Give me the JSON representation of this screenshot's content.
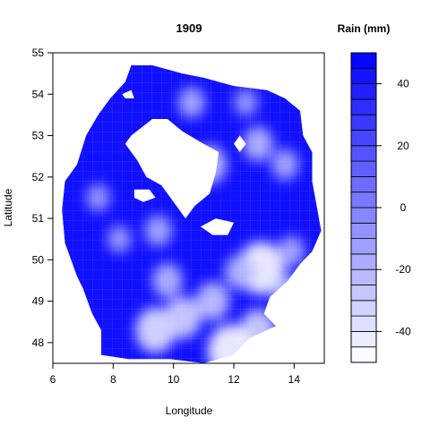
{
  "chart_data": {
    "type": "heatmap",
    "title": "1909",
    "xlabel": "Longitude",
    "ylabel": "Latitude",
    "xlim": [
      6,
      15
    ],
    "ylim": [
      47.5,
      55
    ],
    "x_ticks": [
      "6",
      "8",
      "10",
      "12",
      "14"
    ],
    "y_ticks": [
      "48",
      "49",
      "50",
      "51",
      "52",
      "53",
      "54",
      "55"
    ],
    "legend_title": "Rain (mm)",
    "legend_placement": "right",
    "legend_range": [
      -50,
      50
    ],
    "legend_ticks": [
      "-40",
      "-20",
      "0",
      "20",
      "40"
    ],
    "levels": [
      -50,
      -45,
      -40,
      -35,
      -30,
      -25,
      -20,
      -15,
      -10,
      -5,
      0,
      5,
      10,
      15,
      20,
      25,
      30,
      35,
      40,
      45,
      50
    ],
    "colors": {
      "high": "#0000ff",
      "low": "#ffffff"
    },
    "outline": [
      [
        8.6,
        54.7
      ],
      [
        9.3,
        54.7
      ],
      [
        10.3,
        54.5
      ],
      [
        11.0,
        54.4
      ],
      [
        12.0,
        54.2
      ],
      [
        13.1,
        54.1
      ],
      [
        13.7,
        53.9
      ],
      [
        14.2,
        53.6
      ],
      [
        14.3,
        53.0
      ],
      [
        14.6,
        52.6
      ],
      [
        14.6,
        51.9
      ],
      [
        14.8,
        51.1
      ],
      [
        14.9,
        50.7
      ],
      [
        14.6,
        50.2
      ],
      [
        14.2,
        49.9
      ],
      [
        13.8,
        49.5
      ],
      [
        13.2,
        49.1
      ],
      [
        13.0,
        48.7
      ],
      [
        13.4,
        48.4
      ],
      [
        12.5,
        48.1
      ],
      [
        12.0,
        47.7
      ],
      [
        11.0,
        47.5
      ],
      [
        9.9,
        47.6
      ],
      [
        9.3,
        47.6
      ],
      [
        8.5,
        47.6
      ],
      [
        7.6,
        47.7
      ],
      [
        7.6,
        48.3
      ],
      [
        7.3,
        48.7
      ],
      [
        7.0,
        49.3
      ],
      [
        6.8,
        49.6
      ],
      [
        6.4,
        50.4
      ],
      [
        6.3,
        51.2
      ],
      [
        6.4,
        51.9
      ],
      [
        6.8,
        52.3
      ],
      [
        7.1,
        53.0
      ],
      [
        7.5,
        53.5
      ],
      [
        7.9,
        53.9
      ],
      [
        8.4,
        54.3
      ]
    ],
    "holes": [
      [
        [
          8.6,
          53.0
        ],
        [
          9.3,
          53.4
        ],
        [
          9.8,
          53.4
        ],
        [
          10.3,
          53.1
        ],
        [
          11.0,
          52.8
        ],
        [
          11.5,
          52.6
        ],
        [
          11.4,
          52.1
        ],
        [
          11.2,
          51.6
        ],
        [
          10.7,
          51.3
        ],
        [
          10.4,
          51.0
        ],
        [
          10.0,
          51.4
        ],
        [
          9.6,
          51.8
        ],
        [
          9.1,
          52.0
        ],
        [
          8.8,
          52.4
        ],
        [
          8.4,
          52.8
        ]
      ],
      [
        [
          8.7,
          51.7
        ],
        [
          9.2,
          51.7
        ],
        [
          9.4,
          51.5
        ],
        [
          9.0,
          51.4
        ],
        [
          8.7,
          51.5
        ]
      ],
      [
        [
          10.9,
          50.8
        ],
        [
          11.4,
          51.0
        ],
        [
          12.0,
          50.9
        ],
        [
          11.8,
          50.6
        ],
        [
          11.3,
          50.6
        ]
      ],
      [
        [
          12.2,
          53.0
        ],
        [
          12.4,
          52.8
        ],
        [
          12.2,
          52.6
        ],
        [
          12.0,
          52.8
        ]
      ],
      [
        [
          8.3,
          54.0
        ],
        [
          8.6,
          54.1
        ],
        [
          8.7,
          53.9
        ],
        [
          8.4,
          53.9
        ]
      ]
    ],
    "light_spots": [
      {
        "lon": 12.9,
        "lat": 49.8,
        "value": -45
      },
      {
        "lon": 12.8,
        "lat": 48.3,
        "value": -30
      },
      {
        "lon": 11.9,
        "lat": 47.8,
        "value": -45
      },
      {
        "lon": 9.4,
        "lat": 48.3,
        "value": -35
      },
      {
        "lon": 10.3,
        "lat": 48.6,
        "value": -30
      },
      {
        "lon": 11.3,
        "lat": 49.0,
        "value": -25
      },
      {
        "lon": 13.8,
        "lat": 49.2,
        "value": -20
      },
      {
        "lon": 13.9,
        "lat": 50.2,
        "value": -15
      },
      {
        "lon": 11.2,
        "lat": 52.3,
        "value": -25
      },
      {
        "lon": 12.8,
        "lat": 52.8,
        "value": -20
      },
      {
        "lon": 13.7,
        "lat": 52.3,
        "value": -15
      },
      {
        "lon": 7.5,
        "lat": 51.5,
        "value": -10
      },
      {
        "lon": 8.2,
        "lat": 50.5,
        "value": -10
      },
      {
        "lon": 10.6,
        "lat": 53.8,
        "value": -15
      },
      {
        "lon": 9.5,
        "lat": 50.7,
        "value": -15
      },
      {
        "lon": 12.4,
        "lat": 53.8,
        "value": -10
      },
      {
        "lon": 9.8,
        "lat": 49.5,
        "value": -20
      },
      {
        "lon": 12.2,
        "lat": 49.7,
        "value": -20
      }
    ]
  }
}
